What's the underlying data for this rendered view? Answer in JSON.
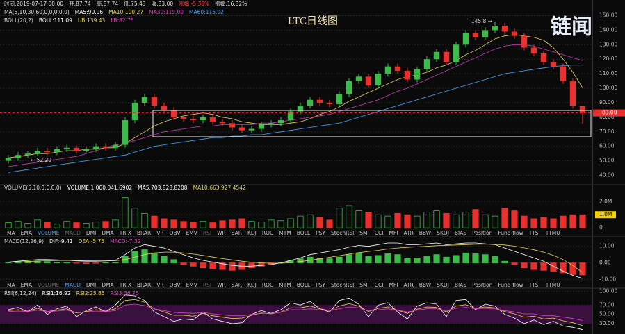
{
  "watermark": "链闻",
  "tabs": [
    "MA",
    "EMA",
    "VOLUME",
    "MACD",
    "DMI",
    "DMA",
    "TRIX",
    "BRAR",
    "VR",
    "OBV",
    "EMV",
    "RSI",
    "WR",
    "SAR",
    "KDJ",
    "ROC",
    "MTM",
    "BOLL",
    "PSY",
    "StochRSI",
    "SMI",
    "CCI",
    "MFI",
    "ATR",
    "BBW",
    "SKDJ",
    "BIAS",
    "Position",
    "Fund-flow",
    "TTSI",
    "TTMU"
  ],
  "chart_data": [
    {
      "type": "candlestick",
      "title": "LTC日线图",
      "info": [
        [
          {
            "text": "时间:2019-07-17 00:00",
            "color": "#dddddd"
          },
          {
            "text": "开:87.74",
            "color": "#dddddd"
          },
          {
            "text": "高:87.74",
            "color": "#dddddd"
          },
          {
            "text": "低:75.43",
            "color": "#dddddd"
          },
          {
            "text": "收:83.00",
            "color": "#dddddd"
          },
          {
            "text": "涨幅:-5.36%",
            "color": "#ff4444"
          },
          {
            "text": "振幅:16.32%",
            "color": "#dddddd"
          }
        ],
        [
          {
            "text": "MA(5,10,30,60,0,0,0,0,0)",
            "color": "#dddddd"
          },
          {
            "text": "MA5:90.96",
            "color": "#ffffff"
          },
          {
            "text": "MA10:100.27",
            "color": "#e8d44d"
          },
          {
            "text": "MA30:119.00",
            "color": "#e040c0"
          },
          {
            "text": "MA60:115.92",
            "color": "#3fa9f5"
          }
        ],
        [
          {
            "text": "BOLL(20,2)",
            "color": "#dddddd"
          },
          {
            "text": "BOLL:111.09",
            "color": "#ffffff"
          },
          {
            "text": "UB:139.43",
            "color": "#e8d44d"
          },
          {
            "text": "LB:82.75",
            "color": "#e040c0"
          }
        ]
      ],
      "open": [
        50,
        52,
        54,
        55,
        57,
        56,
        58,
        59,
        57,
        58,
        60,
        59,
        61,
        78,
        90,
        94,
        88,
        85,
        80,
        79,
        78,
        80,
        77,
        76,
        73,
        71,
        72,
        75,
        76,
        78,
        84,
        88,
        92,
        90,
        89,
        96,
        105,
        108,
        102,
        110,
        115,
        112,
        106,
        113,
        120,
        125,
        118,
        130,
        138,
        135,
        140,
        143,
        139,
        136,
        128,
        124,
        118,
        115,
        105,
        87.74
      ],
      "high": [
        54,
        56,
        57,
        59,
        59,
        60,
        61,
        61,
        60,
        62,
        62,
        63,
        80,
        92,
        96,
        96,
        90,
        87,
        82,
        81,
        82,
        82,
        79,
        78,
        75,
        74,
        77,
        78,
        80,
        86,
        90,
        94,
        94,
        92,
        98,
        107,
        110,
        110,
        112,
        117,
        117,
        114,
        115,
        122,
        127,
        127,
        132,
        140,
        140,
        142,
        145.8,
        145,
        141,
        138,
        130,
        126,
        120,
        117,
        107,
        87.74
      ],
      "low": [
        48,
        50,
        52.29,
        53,
        54,
        54,
        56,
        55,
        55,
        56,
        57,
        57,
        59,
        76,
        88,
        86,
        83,
        78,
        77,
        76,
        76,
        75,
        74,
        71,
        69,
        69,
        70,
        73,
        74,
        76,
        82,
        86,
        88,
        87,
        87,
        94,
        103,
        100,
        100,
        108,
        110,
        104,
        104,
        111,
        118,
        116,
        116,
        128,
        133,
        133,
        138,
        137,
        134,
        126,
        122,
        116,
        113,
        103,
        86,
        75.43
      ],
      "close": [
        52,
        54,
        55,
        57,
        56,
        58,
        59,
        57,
        58,
        60,
        59,
        61,
        78,
        90,
        94,
        88,
        85,
        80,
        79,
        78,
        80,
        77,
        76,
        73,
        71,
        72,
        75,
        76,
        78,
        84,
        88,
        92,
        90,
        89,
        96,
        105,
        108,
        102,
        110,
        115,
        112,
        106,
        113,
        120,
        125,
        118,
        130,
        138,
        135,
        140,
        143,
        139,
        136,
        128,
        124,
        118,
        115,
        105,
        88,
        83
      ],
      "up_color": "#3dbb4a",
      "down_color": "#e8312f",
      "lines": [
        {
          "color": "#e8d44d",
          "values": [
            52,
            53,
            54,
            55,
            55,
            56,
            57,
            57,
            58,
            58,
            59,
            59,
            62,
            66,
            70,
            74,
            77,
            79,
            81,
            82,
            83,
            82,
            80,
            79,
            77,
            76,
            75,
            75,
            75,
            76,
            77,
            79,
            82,
            84,
            87,
            91,
            94,
            97,
            100,
            103,
            106,
            108,
            109,
            111,
            114,
            116,
            119,
            123,
            126,
            130,
            134,
            136,
            137,
            136,
            135,
            133,
            128,
            120,
            111,
            100.27
          ]
        },
        {
          "color": "#c83cb4",
          "values": [
            46,
            47,
            48,
            49,
            50,
            51,
            52,
            53,
            55,
            57,
            59,
            61,
            62,
            64,
            66,
            68,
            70,
            71,
            72,
            73,
            74,
            74,
            75,
            75,
            75,
            75,
            76,
            76,
            77,
            78,
            79,
            80,
            81,
            82,
            84,
            86,
            88,
            90,
            92,
            95,
            98,
            100,
            103,
            106,
            109,
            112,
            115,
            118,
            121,
            124,
            127,
            129,
            130,
            130,
            129,
            127,
            125,
            123,
            121,
            119
          ]
        },
        {
          "color": "#3fa9f5",
          "values": [
            42,
            43,
            44,
            45,
            46,
            47,
            48,
            49,
            50,
            51,
            52,
            53,
            54,
            56,
            58,
            60,
            61,
            62,
            63,
            64,
            65,
            66,
            66,
            67,
            67,
            68,
            68,
            69,
            70,
            71,
            72,
            73,
            74,
            75,
            76,
            78,
            80,
            82,
            84,
            86,
            88,
            90,
            92,
            94,
            96,
            98,
            100,
            102,
            104,
            106,
            108,
            110,
            111,
            112,
            113,
            114,
            115,
            115.5,
            116,
            115.92
          ]
        }
      ],
      "low_label": {
        "value": 52.29,
        "label": "← 52.29"
      },
      "high_label": {
        "value": 145.8,
        "label": "145.8 →"
      },
      "last_label": {
        "value": 83,
        "label": "83.00"
      },
      "ylim": [
        35,
        155
      ],
      "yticks": [
        {
          "value": 40,
          "label": "40.00"
        },
        {
          "value": 50,
          "label": "50.00"
        },
        {
          "value": 60,
          "label": "60.00"
        },
        {
          "value": 70,
          "label": "70.00"
        },
        {
          "value": 80,
          "label": "80.00"
        },
        {
          "value": 90,
          "label": "90.00"
        },
        {
          "value": 100,
          "label": "100.00"
        },
        {
          "value": 110,
          "label": "110.00"
        },
        {
          "value": 120,
          "label": "120.00"
        },
        {
          "value": 130,
          "label": "130.00"
        },
        {
          "value": 140,
          "label": "140.00"
        },
        {
          "value": 150,
          "label": "150.00"
        }
      ],
      "grid": true
    },
    {
      "type": "bar",
      "color_by": "candle",
      "info": [
        [
          {
            "text": "VOLUME(5,10,0,0,0,0)",
            "color": "#dddddd"
          },
          {
            "text": "VOLUME:1,000,041.6902",
            "color": "#ffffff"
          },
          {
            "text": "MA5:703,828.8208",
            "color": "#ffffff"
          },
          {
            "text": "MA10:663,927.4542",
            "color": "#e8d44d"
          }
        ]
      ],
      "values": [
        400000,
        500000,
        350000,
        600000,
        450000,
        300000,
        500000,
        400000,
        350000,
        450000,
        500000,
        600000,
        2300000,
        1500000,
        1100000,
        900000,
        700000,
        600000,
        500000,
        450000,
        500000,
        400000,
        550000,
        600000,
        700000,
        500000,
        450000,
        600000,
        550000,
        700000,
        900000,
        1000000,
        800000,
        600000,
        1500000,
        1700000,
        1300000,
        1200000,
        1000000,
        900000,
        1100000,
        1000000,
        900000,
        1200000,
        1300000,
        1100000,
        1000000,
        1200000,
        1400000,
        1000000,
        900000,
        1500000,
        1300000,
        900000,
        700000,
        800000,
        700000,
        900000,
        1000000,
        1000041.6902
      ],
      "ylim": [
        -150000,
        2650000
      ],
      "yticks": [
        {
          "value": 0,
          "label": "0"
        },
        {
          "value": 1000000,
          "label": "1.0M"
        },
        {
          "value": 2000000,
          "label": "2.0M"
        }
      ],
      "highlight_tick": 1,
      "highlight_color": "#f5d000",
      "active_tab": 2,
      "dim_tabs": [
        3,
        11
      ],
      "grid": true
    },
    {
      "type": "bar",
      "color_by": "sign",
      "up_color": "#3dbb4a",
      "down_color": "#e8312f",
      "info": [
        [
          {
            "text": "MACD(12,26,9)",
            "color": "#dddddd"
          },
          {
            "text": "DIF:-9.41",
            "color": "#ffffff"
          },
          {
            "text": "DEA:-5.75",
            "color": "#e8d44d"
          },
          {
            "text": "MACD:-7.32",
            "color": "#e040c0"
          }
        ]
      ],
      "values": [
        0.5,
        0.8,
        1,
        1.2,
        0.8,
        0.5,
        0.3,
        -0.2,
        -0.5,
        -0.3,
        0.2,
        0.5,
        4,
        7,
        8,
        6,
        4,
        2,
        -1,
        -2,
        -3,
        -3.5,
        -4,
        -4.5,
        -4,
        -3,
        -2,
        -1,
        0.5,
        1.5,
        2.5,
        3.5,
        3,
        2.5,
        3.5,
        5,
        6,
        4,
        4.5,
        5.5,
        5,
        3,
        3,
        4,
        5,
        3.5,
        4.5,
        6,
        5.5,
        5,
        4,
        1,
        -1,
        -3,
        -4,
        -4.5,
        -5,
        -6,
        -7,
        -7.32
      ],
      "lines": [
        {
          "color": "#ffffff",
          "values": [
            0.5,
            1,
            1.5,
            2,
            2,
            1.8,
            1.6,
            1.2,
            1,
            1,
            1.2,
            1.5,
            5,
            9,
            11,
            10,
            9,
            7,
            5,
            3,
            1.5,
            0.5,
            -0.5,
            -1.5,
            -2,
            -2,
            -1.5,
            -1,
            0,
            1.5,
            3,
            5,
            6,
            7,
            8,
            9.5,
            10.5,
            10,
            11,
            12,
            12,
            11,
            11,
            11.5,
            12,
            11,
            11.5,
            12,
            12,
            11.5,
            11,
            9,
            7,
            5,
            3,
            1,
            -2,
            -5,
            -7.5,
            -9.41
          ]
        },
        {
          "color": "#e8d44d",
          "values": [
            0.3,
            0.5,
            0.8,
            1.1,
            1.3,
            1.4,
            1.5,
            1.4,
            1.3,
            1.2,
            1.2,
            1.3,
            2,
            3.5,
            5,
            6,
            6.5,
            6.5,
            6,
            5.3,
            4.5,
            3.5,
            2.6,
            1.8,
            1,
            0.4,
            0,
            -0.2,
            -0.2,
            0.2,
            0.8,
            1.6,
            2.5,
            3.4,
            4.3,
            5.3,
            6.2,
            6.9,
            7.6,
            8.4,
            9,
            9.4,
            9.7,
            10,
            10.4,
            10.6,
            10.8,
            11,
            11.2,
            11.3,
            11.2,
            10.8,
            10.1,
            9.1,
            7.9,
            6.5,
            4.5,
            2,
            -1.5,
            -5.75
          ]
        }
      ],
      "ylim": [
        -11.5,
        14.5
      ],
      "yticks": [
        {
          "value": -10,
          "label": "-10.00"
        },
        {
          "value": 0,
          "label": "0.00"
        },
        {
          "value": 10,
          "label": "10.00"
        }
      ],
      "active_tab": 3,
      "dim_tabs": [
        2,
        11
      ],
      "grid": true
    },
    {
      "type": "line",
      "info": [
        [
          {
            "text": "RSI(6,12,24)",
            "color": "#dddddd"
          },
          {
            "text": "RSI1:16.92",
            "color": "#ffffff"
          },
          {
            "text": "RSI2:25.85",
            "color": "#e8d44d"
          },
          {
            "text": "RSI3:36.75",
            "color": "#e040c0"
          }
        ]
      ],
      "lines": [
        {
          "color": "#ffffff",
          "values": [
            60,
            65,
            55,
            70,
            50,
            62,
            68,
            45,
            58,
            66,
            55,
            70,
            92,
            90,
            80,
            55,
            45,
            35,
            40,
            38,
            55,
            40,
            35,
            30,
            32,
            50,
            58,
            52,
            60,
            75,
            70,
            78,
            62,
            55,
            80,
            85,
            72,
            45,
            70,
            75,
            55,
            40,
            68,
            75,
            72,
            45,
            80,
            82,
            60,
            72,
            68,
            50,
            42,
            30,
            38,
            28,
            35,
            25,
            22,
            16.92
          ]
        },
        {
          "color": "#e8d44d",
          "values": [
            58,
            60,
            57,
            63,
            56,
            59,
            62,
            53,
            56,
            60,
            57,
            62,
            80,
            82,
            76,
            62,
            55,
            48,
            48,
            46,
            52,
            47,
            44,
            41,
            42,
            48,
            53,
            51,
            55,
            64,
            64,
            68,
            62,
            58,
            68,
            73,
            68,
            56,
            63,
            66,
            59,
            52,
            61,
            66,
            65,
            55,
            68,
            71,
            63,
            66,
            64,
            56,
            51,
            44,
            46,
            40,
            42,
            36,
            32,
            25.85
          ]
        },
        {
          "color": "#e040c0",
          "values": [
            56,
            57,
            56,
            59,
            56,
            57,
            59,
            54,
            55,
            57,
            56,
            58,
            70,
            72,
            69,
            62,
            58,
            54,
            53,
            52,
            54,
            51,
            49,
            47,
            47,
            50,
            52,
            52,
            54,
            60,
            60,
            62,
            60,
            58,
            62,
            66,
            64,
            58,
            60,
            62,
            59,
            55,
            59,
            62,
            62,
            57,
            63,
            65,
            62,
            63,
            62,
            58,
            55,
            51,
            51,
            47,
            47,
            44,
            41,
            36.75
          ]
        }
      ],
      "band": [
        30,
        70
      ],
      "band_color": "#3a0f40",
      "ylim": [
        9,
        102
      ],
      "yticks": [
        {
          "value": 30,
          "label": "30.00"
        },
        {
          "value": 50,
          "label": "50.00"
        },
        {
          "value": 70,
          "label": "70.00"
        },
        {
          "value": 100,
          "label": "100.00"
        }
      ],
      "grid": true
    }
  ]
}
